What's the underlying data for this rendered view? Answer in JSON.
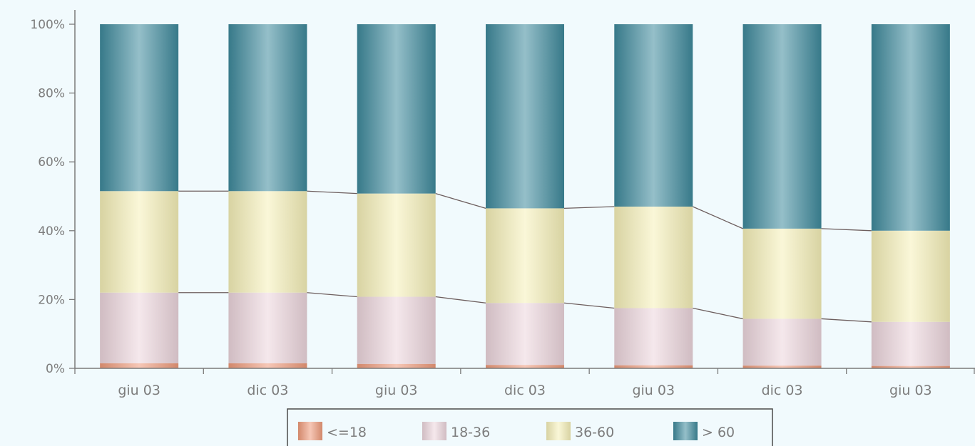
{
  "chart_data": {
    "type": "bar",
    "stacked": true,
    "percent_stacked": true,
    "categories": [
      "giu 03",
      "dic 03",
      "giu 03",
      "dic 03",
      "giu 03",
      "dic 03",
      "giu 03"
    ],
    "series": [
      {
        "name": "<=18",
        "values": [
          1.5,
          1.5,
          1.3,
          1.0,
          0.9,
          0.8,
          0.7
        ],
        "color": "#ef9a7a"
      },
      {
        "name": "18-36",
        "values": [
          20.5,
          20.5,
          19.5,
          18.0,
          16.6,
          13.6,
          12.8
        ],
        "color": "#ecd6dc"
      },
      {
        "name": "36-60",
        "values": [
          29.5,
          29.5,
          30.0,
          27.5,
          29.5,
          26.2,
          26.5
        ],
        "color": "#f6f0b8"
      },
      {
        "name": "> 60",
        "values": [
          48.5,
          48.5,
          49.2,
          53.5,
          53.0,
          59.4,
          60.0
        ],
        "color": "#3e8a9c"
      }
    ],
    "y_ticks": [
      "0%",
      "20%",
      "40%",
      "60%",
      "80%",
      "100%"
    ],
    "ylim": [
      0,
      100
    ],
    "legend_position": "bottom",
    "connector_lines": true,
    "grid": false
  }
}
